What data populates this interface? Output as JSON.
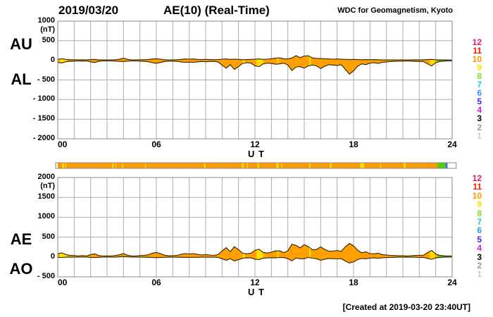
{
  "header": {
    "date": "2019/03/20",
    "title": "AE(10) (Real-Time)",
    "credit": "WDC for Geomagnetism, Kyoto"
  },
  "footer": {
    "created": "[Created at 2019-03-20 23:40UT]"
  },
  "colors": {
    "fill": "#FFA000",
    "streak": "#FFE000",
    "outline": "#332200",
    "grid": "#ABABAB",
    "frame": "#888888"
  },
  "station_scale": {
    "values": [
      "12",
      "11",
      "10",
      "9",
      "8",
      "7",
      "6",
      "5",
      "4",
      "3",
      "2",
      "1"
    ],
    "colors": [
      "#E8186D",
      "#EE2200",
      "#FF9900",
      "#FFE000",
      "#88DD22",
      "#22CCCC",
      "#3399EE",
      "#4422EE",
      "#CC22CC",
      "#000000",
      "#999999",
      "#CCCCCC"
    ]
  },
  "chart_data": {
    "type": "area",
    "title": "AE(10) (Real-Time)",
    "date": "2019/03/20",
    "x_axis": "hours UT 0-24, gridlines every hour",
    "panels": [
      {
        "name": "AU-AL-panel",
        "left_labels": [
          "AU",
          "AL"
        ],
        "unit": "(nT)",
        "ylim": [
          -2000,
          1000
        ],
        "yticks": [
          {
            "v": 1000,
            "label": "1000"
          },
          {
            "v": 500,
            "label": "500"
          },
          {
            "v": 0,
            "label": "0"
          },
          {
            "v": -500,
            "label": "- 500"
          },
          {
            "v": -1000,
            "label": "- 1000"
          },
          {
            "v": -1500,
            "label": "- 1500"
          },
          {
            "v": -2000,
            "label": "- 2000"
          }
        ],
        "xlim": [
          0,
          24
        ],
        "xticks": [
          {
            "v": 0,
            "label": "00"
          },
          {
            "v": 6,
            "label": "06"
          },
          {
            "v": 12,
            "label": "12"
          },
          {
            "v": 18,
            "label": "18"
          },
          {
            "v": 24,
            "label": "24"
          }
        ],
        "xlabel": "U T",
        "x_start": 0,
        "x_step_hours": 0.25,
        "series": [
          {
            "name": "AU",
            "values": [
              30,
              40,
              25,
              15,
              15,
              10,
              15,
              10,
              20,
              25,
              10,
              10,
              10,
              10,
              15,
              30,
              55,
              25,
              10,
              10,
              15,
              15,
              20,
              35,
              40,
              30,
              15,
              10,
              10,
              15,
              25,
              35,
              30,
              35,
              25,
              20,
              25,
              20,
              15,
              20,
              30,
              35,
              25,
              30,
              25,
              15,
              20,
              25,
              30,
              35,
              25,
              30,
              40,
              55,
              65,
              40,
              35,
              60,
              120,
              70,
              110,
              120,
              60,
              50,
              45,
              40,
              35,
              30,
              35,
              30,
              25,
              20,
              25,
              20,
              15,
              20,
              15,
              20,
              15,
              10,
              10,
              10,
              10,
              10,
              10,
              10,
              10,
              15,
              10,
              15,
              20,
              25,
              15,
              10,
              10,
              10,
              10
            ]
          },
          {
            "name": "AL",
            "values": [
              -55,
              -65,
              -35,
              -25,
              -20,
              -15,
              -20,
              -15,
              -40,
              -55,
              -25,
              -15,
              -15,
              -15,
              -20,
              -25,
              -30,
              -20,
              -15,
              -15,
              -20,
              -25,
              -35,
              -60,
              -75,
              -55,
              -30,
              -20,
              -20,
              -25,
              -40,
              -50,
              -45,
              -50,
              -40,
              -30,
              -35,
              -30,
              -25,
              -40,
              -120,
              -200,
              -110,
              -230,
              -160,
              -80,
              -60,
              -70,
              -140,
              -160,
              -90,
              -70,
              -80,
              -100,
              -90,
              -70,
              -120,
              -260,
              -170,
              -160,
              -200,
              -140,
              -120,
              -140,
              -210,
              -150,
              -110,
              -120,
              -130,
              -110,
              -230,
              -350,
              -270,
              -150,
              -90,
              -110,
              -70,
              -60,
              -80,
              -50,
              -40,
              -30,
              -25,
              -20,
              -20,
              -15,
              -20,
              -25,
              -30,
              -30,
              -90,
              -140,
              -60,
              -30,
              -20,
              -15,
              -15
            ]
          }
        ]
      },
      {
        "name": "AE-AO-panel",
        "left_labels": [
          "AE",
          "AO"
        ],
        "unit": "(nT)",
        "ylim": [
          -500,
          2000
        ],
        "yticks": [
          {
            "v": 2000,
            "label": "2000"
          },
          {
            "v": 1500,
            "label": "1500"
          },
          {
            "v": 1000,
            "label": "1000"
          },
          {
            "v": 500,
            "label": "500"
          },
          {
            "v": 0,
            "label": "0"
          },
          {
            "v": -500,
            "label": "- 500"
          }
        ],
        "xlim": [
          0,
          24
        ],
        "xticks": [
          {
            "v": 0,
            "label": "00"
          },
          {
            "v": 6,
            "label": "06"
          },
          {
            "v": 12,
            "label": "12"
          },
          {
            "v": 18,
            "label": "18"
          },
          {
            "v": 24,
            "label": "24"
          }
        ],
        "xlabel": "U T",
        "x_start": 0,
        "x_step_hours": 0.25,
        "series": [
          {
            "name": "AE",
            "values": [
              85,
              105,
              60,
              40,
              35,
              25,
              35,
              25,
              60,
              80,
              35,
              25,
              25,
              25,
              35,
              55,
              85,
              45,
              25,
              25,
              35,
              40,
              55,
              95,
              115,
              85,
              45,
              30,
              30,
              40,
              65,
              85,
              75,
              85,
              65,
              50,
              60,
              50,
              40,
              60,
              150,
              235,
              135,
              260,
              185,
              95,
              80,
              95,
              170,
              195,
              115,
              100,
              120,
              155,
              155,
              110,
              155,
              320,
              290,
              230,
              310,
              260,
              180,
              190,
              255,
              190,
              145,
              150,
              165,
              140,
              255,
              340,
              280,
              170,
              105,
              130,
              85,
              80,
              95,
              60,
              50,
              40,
              35,
              30,
              30,
              25,
              30,
              40,
              40,
              45,
              110,
              165,
              75,
              40,
              30,
              25,
              25
            ]
          },
          {
            "name": "AO",
            "values": [
              -13,
              -13,
              -5,
              -5,
              -3,
              -3,
              -3,
              -3,
              -10,
              -15,
              -8,
              -3,
              -3,
              -3,
              -3,
              3,
              13,
              3,
              -3,
              -3,
              -3,
              -5,
              -8,
              -13,
              -18,
              -13,
              -8,
              -5,
              -5,
              -5,
              -8,
              -8,
              -8,
              -8,
              -8,
              -5,
              -5,
              -5,
              -5,
              -10,
              -45,
              -83,
              -43,
              -100,
              -68,
              -33,
              -20,
              -23,
              -55,
              -63,
              -33,
              -20,
              -20,
              -23,
              -13,
              -15,
              -43,
              -100,
              -25,
              -45,
              -45,
              -10,
              -30,
              -45,
              -83,
              -55,
              -38,
              -45,
              -48,
              -40,
              -103,
              -150,
              -123,
              -65,
              -38,
              -45,
              -28,
              -20,
              -33,
              -20,
              -15,
              -10,
              -8,
              -5,
              -5,
              -3,
              -5,
              -5,
              -10,
              -8,
              -35,
              -58,
              -23,
              -10,
              -5,
              -3,
              -3
            ]
          }
        ]
      }
    ],
    "station_activity_bar": {
      "description": "number-of-stations bar between panels",
      "segments": [
        {
          "from": 0,
          "to": 23.1,
          "color": "#FF9900",
          "stations": "10"
        },
        {
          "from": 23.1,
          "to": 23.58,
          "color": "#55CC00",
          "stations": "8"
        },
        {
          "from": 23.58,
          "to": 23.72,
          "color": "#2E7FD4",
          "stations": "6"
        },
        {
          "from": 23.72,
          "to": 24.25,
          "color": "#FFFFFF",
          "stations": ""
        }
      ],
      "yellow_streaks": [
        [
          0.28,
          0.1
        ],
        [
          0.45,
          0.06
        ],
        [
          3.3,
          0.1
        ],
        [
          3.5,
          0.06
        ],
        [
          3.92,
          0.06
        ],
        [
          5.3,
          0.06
        ],
        [
          8.9,
          0.1
        ],
        [
          11.2,
          0.12
        ],
        [
          11.5,
          0.06
        ],
        [
          12.15,
          0.1
        ],
        [
          13.3,
          0.14
        ],
        [
          13.6,
          0.06
        ],
        [
          15.3,
          0.08
        ],
        [
          16.55,
          0.12
        ],
        [
          18.4,
          0.25
        ],
        [
          19.62,
          0.06
        ],
        [
          21.05,
          0.12
        ]
      ]
    },
    "fill_streaks_hours": [
      [
        0.12,
        0.45
      ],
      [
        11.25,
        0.15
      ],
      [
        12.1,
        0.4
      ],
      [
        13.35,
        0.1
      ],
      [
        15.3,
        0.1
      ],
      [
        22.65,
        0.3
      ]
    ],
    "end_tips": [
      {
        "from": 23.1,
        "to": 23.58,
        "color": "#55CC00"
      },
      {
        "from": 23.58,
        "to": 23.72,
        "color": "#2E7FD4"
      }
    ]
  }
}
